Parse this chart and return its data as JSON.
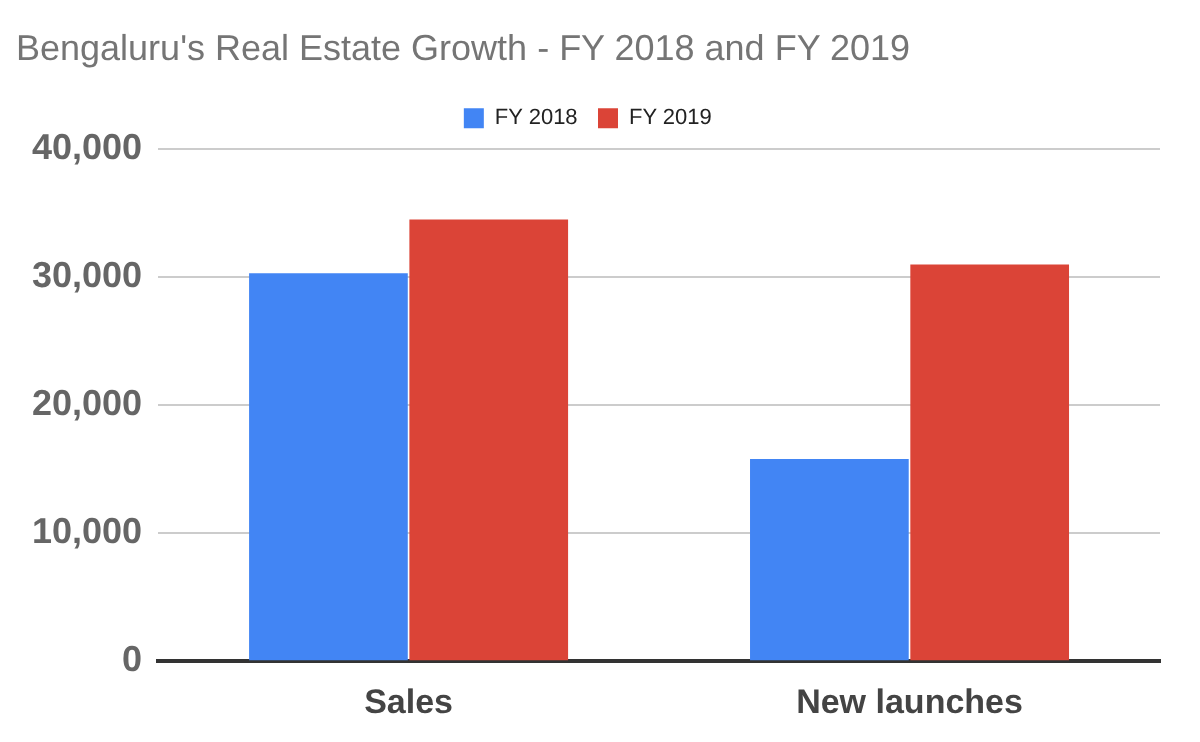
{
  "chart_data": {
    "type": "bar",
    "title": "Bengaluru's Real Estate Growth - FY 2018 and FY 2019",
    "categories": [
      "Sales",
      "New launches"
    ],
    "series": [
      {
        "name": "FY 2018",
        "color": "#4285f4",
        "values": [
          30300,
          15800
        ]
      },
      {
        "name": "FY 2019",
        "color": "#db4437",
        "values": [
          34500,
          31000
        ]
      }
    ],
    "ylim": [
      0,
      40000
    ],
    "yticks": [
      {
        "value": 0,
        "label": "0"
      },
      {
        "value": 10000,
        "label": "10,000"
      },
      {
        "value": 20000,
        "label": "20,000"
      },
      {
        "value": 30000,
        "label": "30,000"
      },
      {
        "value": 40000,
        "label": "40,000"
      }
    ],
    "grid": "y",
    "legend": "top"
  }
}
